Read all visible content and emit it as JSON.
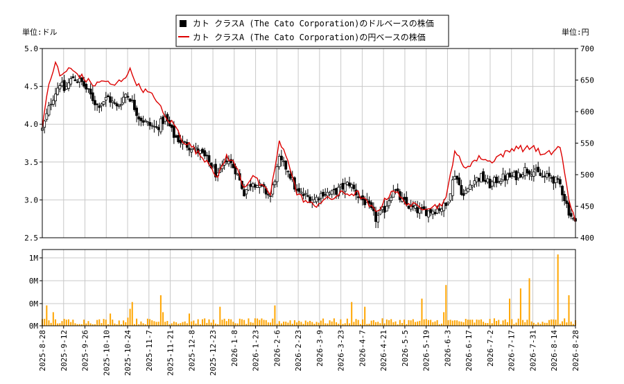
{
  "chart_data": [
    {
      "type": "candlestick+line",
      "legend": [
        {
          "label": "カト クラスA (The Cato Corporation)のドルベースの株価",
          "color": "#000000",
          "marker": "square"
        },
        {
          "label": "カト クラスA (The Cato Corporation)の円ベースの株価",
          "color": "#dd0000",
          "marker": "line"
        }
      ],
      "left_unit_label": "単位:ドル",
      "right_unit_label": "単位:円",
      "y_left_range": [
        2.5,
        5.0
      ],
      "y_left_ticks": [
        "2.5",
        "3.0",
        "3.5",
        "4.0",
        "4.5",
        "5.0"
      ],
      "y_right_range": [
        400,
        700
      ],
      "y_right_ticks": [
        "400",
        "450",
        "500",
        "550",
        "600",
        "650",
        "700"
      ],
      "grid": true,
      "usd_close_anchors": [
        [
          0,
          3.93
        ],
        [
          4,
          4.3
        ],
        [
          8,
          4.55
        ],
        [
          10,
          4.45
        ],
        [
          14,
          4.62
        ],
        [
          18,
          4.55
        ],
        [
          22,
          4.38
        ],
        [
          25,
          4.25
        ],
        [
          30,
          4.35
        ],
        [
          34,
          4.22
        ],
        [
          38,
          4.4
        ],
        [
          40,
          4.35
        ],
        [
          44,
          4.1
        ],
        [
          48,
          4.0
        ],
        [
          52,
          3.95
        ],
        [
          56,
          4.08
        ],
        [
          60,
          3.85
        ],
        [
          64,
          3.75
        ],
        [
          68,
          3.7
        ],
        [
          72,
          3.62
        ],
        [
          76,
          3.5
        ],
        [
          80,
          3.3
        ],
        [
          84,
          3.55
        ],
        [
          88,
          3.4
        ],
        [
          92,
          3.1
        ],
        [
          96,
          3.25
        ],
        [
          100,
          3.15
        ],
        [
          104,
          3.05
        ],
        [
          108,
          3.52
        ],
        [
          112,
          3.4
        ],
        [
          116,
          3.1
        ],
        [
          120,
          3.05
        ],
        [
          124,
          3.0
        ],
        [
          128,
          3.1
        ],
        [
          132,
          3.08
        ],
        [
          136,
          3.15
        ],
        [
          140,
          3.22
        ],
        [
          144,
          3.05
        ],
        [
          148,
          2.95
        ],
        [
          152,
          2.75
        ],
        [
          156,
          2.88
        ],
        [
          160,
          3.15
        ],
        [
          164,
          2.98
        ],
        [
          168,
          2.9
        ],
        [
          172,
          2.85
        ],
        [
          176,
          2.85
        ],
        [
          180,
          2.88
        ],
        [
          184,
          2.92
        ],
        [
          188,
          3.35
        ],
        [
          192,
          3.05
        ],
        [
          196,
          3.25
        ],
        [
          200,
          3.3
        ],
        [
          204,
          3.2
        ],
        [
          208,
          3.28
        ],
        [
          212,
          3.3
        ],
        [
          216,
          3.32
        ],
        [
          220,
          3.4
        ],
        [
          224,
          3.38
        ],
        [
          228,
          3.3
        ],
        [
          232,
          3.3
        ],
        [
          236,
          3.2
        ],
        [
          240,
          2.85
        ],
        [
          243,
          2.68
        ]
      ],
      "jpy_close_anchors": [
        [
          0,
          580
        ],
        [
          3,
          640
        ],
        [
          6,
          680
        ],
        [
          8,
          655
        ],
        [
          12,
          668
        ],
        [
          16,
          660
        ],
        [
          20,
          650
        ],
        [
          24,
          642
        ],
        [
          28,
          650
        ],
        [
          32,
          640
        ],
        [
          36,
          650
        ],
        [
          40,
          665
        ],
        [
          44,
          640
        ],
        [
          48,
          630
        ],
        [
          52,
          620
        ],
        [
          56,
          590
        ],
        [
          60,
          580
        ],
        [
          64,
          555
        ],
        [
          68,
          545
        ],
        [
          72,
          530
        ],
        [
          76,
          520
        ],
        [
          80,
          495
        ],
        [
          84,
          530
        ],
        [
          88,
          515
        ],
        [
          92,
          480
        ],
        [
          96,
          500
        ],
        [
          100,
          480
        ],
        [
          104,
          470
        ],
        [
          108,
          550
        ],
        [
          112,
          525
        ],
        [
          116,
          470
        ],
        [
          120,
          458
        ],
        [
          124,
          450
        ],
        [
          128,
          460
        ],
        [
          132,
          462
        ],
        [
          136,
          470
        ],
        [
          140,
          470
        ],
        [
          144,
          470
        ],
        [
          148,
          455
        ],
        [
          152,
          440
        ],
        [
          156,
          458
        ],
        [
          160,
          478
        ],
        [
          164,
          460
        ],
        [
          168,
          452
        ],
        [
          172,
          448
        ],
        [
          176,
          450
        ],
        [
          180,
          450
        ],
        [
          184,
          460
        ],
        [
          188,
          540
        ],
        [
          192,
          510
        ],
        [
          196,
          520
        ],
        [
          200,
          528
        ],
        [
          204,
          520
        ],
        [
          208,
          530
        ],
        [
          212,
          535
        ],
        [
          216,
          545
        ],
        [
          220,
          540
        ],
        [
          224,
          545
        ],
        [
          228,
          530
        ],
        [
          232,
          535
        ],
        [
          236,
          545
        ],
        [
          240,
          460
        ],
        [
          243,
          430
        ]
      ],
      "volume_ticks": [
        "0M",
        "0M",
        "0M",
        "1M"
      ],
      "volume_peak_millions": 1.05,
      "x_tick_labels": [
        "2025-8-28",
        "2025-9-12",
        "2025-9-26",
        "2025-10-10",
        "2025-10-24",
        "2025-11-7",
        "2025-11-21",
        "2025-12-8",
        "2025-12-23",
        "2026-1-8",
        "2026-1-23",
        "2026-2-6",
        "2026-2-23",
        "2026-3-9",
        "2026-3-23",
        "2026-4-7",
        "2026-4-21",
        "2026-5-5",
        "2026-5-19",
        "2026-6-3",
        "2026-6-17",
        "2026-7-2",
        "2026-7-17",
        "2026-7-31",
        "2026-8-14",
        "2026-8-28"
      ],
      "colors": {
        "usd": "#000000",
        "jpy": "#dd0000",
        "volume": "#ffa500",
        "grid": "#c8c8c8"
      }
    }
  ]
}
